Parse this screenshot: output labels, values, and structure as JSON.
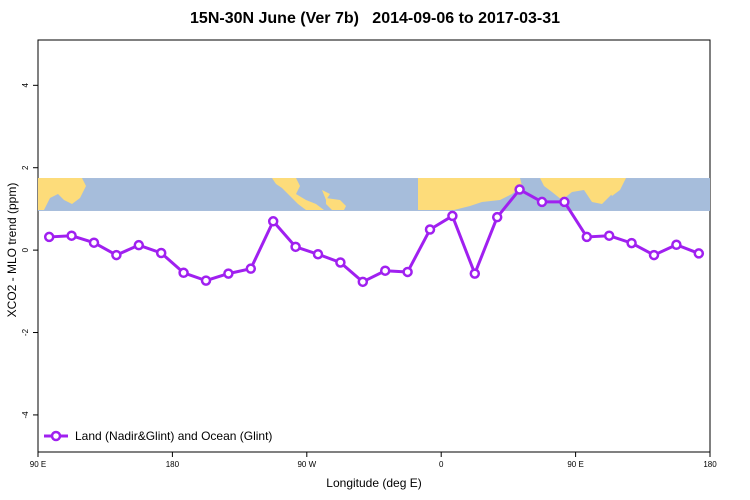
{
  "chart_data": {
    "type": "line",
    "title": "15N-30N June (Ver 7b)   2014-09-06 to 2017-03-31",
    "xlabel": "Longitude (deg E)",
    "ylabel": "XCO2 - MLO trend (ppm)",
    "xlim": [
      90,
      450
    ],
    "ylim": [
      -4.9,
      5.1
    ],
    "x_ticks": [
      {
        "value": 90,
        "label": "90 E"
      },
      {
        "value": 162,
        "label": "180"
      },
      {
        "value": 234,
        "label": "90 W"
      },
      {
        "value": 306,
        "label": "0"
      },
      {
        "value": 378,
        "label": "90 E"
      },
      {
        "value": 450,
        "label": "180"
      }
    ],
    "y_ticks": [
      {
        "value": 4,
        "label": "4"
      },
      {
        "value": 2,
        "label": "2"
      },
      {
        "value": 0,
        "label": "0"
      },
      {
        "value": -2,
        "label": "-2"
      },
      {
        "value": -4,
        "label": "-4"
      }
    ],
    "map_band": {
      "ymin": 0.95,
      "ymax": 1.75
    },
    "legend": {
      "position": "bottom-left"
    },
    "series": [
      {
        "name": "Land (Nadir&Glint) and Ocean (Glint)",
        "color": "#a020f0",
        "x": [
          96,
          108,
          120,
          132,
          144,
          156,
          168,
          180,
          192,
          204,
          216,
          228,
          240,
          252,
          264,
          276,
          288,
          300,
          312,
          324,
          336,
          348,
          360,
          372,
          384,
          396,
          408,
          420,
          432,
          444
        ],
        "y": [
          0.32,
          0.35,
          0.18,
          -0.12,
          0.12,
          -0.07,
          -0.55,
          -0.74,
          -0.57,
          -0.45,
          0.7,
          0.08,
          -0.1,
          -0.3,
          -0.77,
          -0.5,
          -0.53,
          0.5,
          0.83,
          -0.57,
          0.8,
          1.47,
          1.17,
          1.17,
          0.32,
          0.35,
          0.17,
          -0.12,
          0.13,
          -0.08
        ]
      }
    ]
  }
}
